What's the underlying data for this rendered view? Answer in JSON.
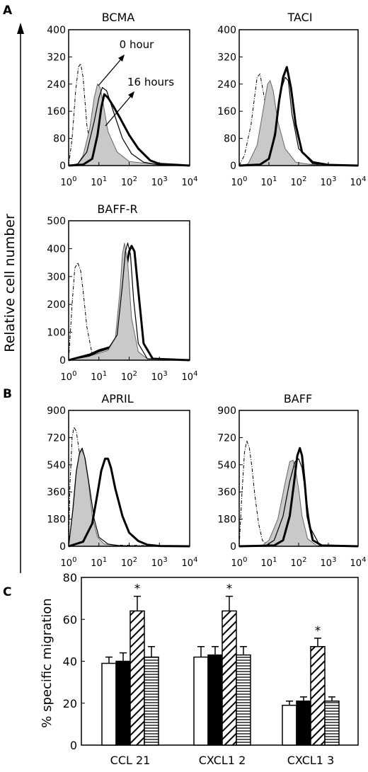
{
  "panel_labels": {
    "A": "A",
    "B": "B",
    "C": "C"
  },
  "shared_ylabel": "Relative cell number",
  "chart_data": [
    {
      "id": "bcma",
      "type": "line",
      "title": "BCMA",
      "x_scale": "log",
      "xlim": [
        1,
        10000
      ],
      "ylim": [
        0,
        400
      ],
      "x_ticks": [
        "10^0",
        "10^1",
        "10^2",
        "10^3",
        "10^4"
      ],
      "y_ticks": [
        0,
        80,
        160,
        240,
        320,
        400
      ],
      "annotations": [
        "0 hour",
        "16 hours"
      ],
      "series": [
        {
          "style": "dashdot",
          "x": [
            1,
            1.3,
            1.7,
            2.1,
            2.5,
            3,
            4,
            6,
            10,
            30,
            10000
          ],
          "y": [
            0,
            80,
            220,
            290,
            300,
            260,
            120,
            30,
            5,
            0,
            0
          ]
        },
        {
          "style": "filled",
          "x": [
            1,
            2,
            3,
            5,
            7,
            9,
            11,
            14,
            20,
            40,
            100,
            1000,
            10000
          ],
          "y": [
            0,
            5,
            30,
            110,
            200,
            240,
            230,
            180,
            100,
            40,
            12,
            2,
            0
          ]
        },
        {
          "style": "thick",
          "x": [
            1,
            3,
            6,
            9,
            12,
            15,
            20,
            30,
            50,
            100,
            200,
            500,
            1000,
            10000
          ],
          "y": [
            0,
            3,
            20,
            90,
            170,
            210,
            200,
            175,
            140,
            90,
            50,
            15,
            5,
            0
          ]
        },
        {
          "style": "thin",
          "x": [
            1,
            2,
            4,
            7,
            10,
            13,
            18,
            30,
            60,
            120,
            300,
            1000,
            10000
          ],
          "y": [
            0,
            5,
            40,
            130,
            200,
            230,
            220,
            160,
            80,
            35,
            10,
            2,
            0
          ]
        }
      ]
    },
    {
      "id": "taci",
      "type": "line",
      "title": "TACI",
      "x_scale": "log",
      "xlim": [
        1,
        10000
      ],
      "ylim": [
        0,
        400
      ],
      "x_ticks": [
        "10^0",
        "10^1",
        "10^2",
        "10^3",
        "10^4"
      ],
      "y_ticks": [
        0,
        80,
        160,
        240,
        320,
        400
      ],
      "series": [
        {
          "style": "dashdot",
          "x": [
            1,
            1.5,
            2.5,
            4,
            5,
            7,
            10,
            20,
            60,
            10000
          ],
          "y": [
            0,
            30,
            120,
            260,
            270,
            200,
            100,
            30,
            5,
            0
          ]
        },
        {
          "style": "filled",
          "x": [
            1,
            2,
            4,
            6,
            9,
            11,
            14,
            20,
            35,
            80,
            300,
            10000
          ],
          "y": [
            0,
            5,
            60,
            150,
            240,
            250,
            220,
            130,
            50,
            10,
            2,
            0
          ]
        },
        {
          "style": "thick",
          "x": [
            1,
            5,
            10,
            16,
            22,
            30,
            40,
            55,
            80,
            130,
            300,
            1000,
            10000
          ],
          "y": [
            0,
            3,
            20,
            90,
            190,
            260,
            290,
            230,
            120,
            40,
            10,
            2,
            0
          ]
        },
        {
          "style": "thin",
          "x": [
            1,
            5,
            10,
            18,
            25,
            35,
            45,
            60,
            100,
            300,
            10000
          ],
          "y": [
            0,
            3,
            20,
            120,
            220,
            260,
            250,
            150,
            50,
            5,
            0
          ]
        }
      ]
    },
    {
      "id": "baffr",
      "type": "line",
      "title": "BAFF-R",
      "x_scale": "log",
      "xlim": [
        1,
        10000
      ],
      "ylim": [
        0,
        500
      ],
      "x_ticks": [
        "10^0",
        "10^1",
        "10^2",
        "10^3",
        "10^4"
      ],
      "y_ticks": [
        0,
        100,
        200,
        300,
        400,
        500
      ],
      "series": [
        {
          "style": "dashdot",
          "x": [
            1,
            1.3,
            1.6,
            2,
            2.5,
            3,
            4,
            6,
            10,
            10000
          ],
          "y": [
            0,
            200,
            330,
            350,
            320,
            250,
            120,
            20,
            3,
            0
          ]
        },
        {
          "style": "thick",
          "x": [
            1,
            5,
            10,
            30,
            60,
            80,
            100,
            120,
            150,
            200,
            300,
            600,
            10000
          ],
          "y": [
            0,
            20,
            35,
            50,
            100,
            330,
            390,
            410,
            390,
            250,
            60,
            5,
            0
          ]
        },
        {
          "style": "filled",
          "x": [
            1,
            5,
            10,
            20,
            35,
            50,
            60,
            70,
            90,
            120,
            200,
            400,
            10000
          ],
          "y": [
            0,
            15,
            25,
            35,
            80,
            250,
            380,
            420,
            350,
            150,
            30,
            5,
            0
          ]
        },
        {
          "style": "thin",
          "x": [
            1,
            5,
            10,
            20,
            40,
            60,
            75,
            90,
            110,
            140,
            200,
            400,
            10000
          ],
          "y": [
            0,
            15,
            30,
            40,
            90,
            270,
            390,
            420,
            380,
            220,
            60,
            5,
            0
          ]
        }
      ]
    },
    {
      "id": "april",
      "type": "line",
      "title": "APRIL",
      "x_scale": "log",
      "xlim": [
        1,
        10000
      ],
      "ylim": [
        0,
        900
      ],
      "x_ticks": [
        "10^0",
        "10^1",
        "10^2",
        "10^3",
        "10^4"
      ],
      "y_ticks": [
        0,
        180,
        360,
        540,
        720,
        900
      ],
      "series": [
        {
          "style": "dashdot",
          "x": [
            1,
            1.1,
            1.3,
            1.5,
            1.8,
            2.2,
            3,
            4,
            6,
            10,
            10000
          ],
          "y": [
            0,
            400,
            720,
            790,
            760,
            640,
            420,
            250,
            80,
            10,
            0
          ]
        },
        {
          "style": "filled",
          "x": [
            1,
            1.3,
            1.7,
            2.2,
            2.7,
            3.3,
            4.5,
            6,
            9,
            15,
            40,
            10000
          ],
          "y": [
            0,
            200,
            460,
            600,
            640,
            600,
            430,
            200,
            60,
            15,
            3,
            0
          ]
        },
        {
          "style": "thin",
          "x": [
            1,
            1.4,
            1.8,
            2.3,
            2.8,
            3.5,
            5,
            7,
            10,
            20,
            50,
            10000
          ],
          "y": [
            0,
            250,
            500,
            620,
            650,
            580,
            380,
            180,
            60,
            15,
            3,
            0
          ]
        },
        {
          "style": "thick",
          "x": [
            1,
            3,
            6,
            9,
            12,
            16,
            20,
            25,
            35,
            60,
            100,
            200,
            400,
            1000,
            10000
          ],
          "y": [
            0,
            30,
            150,
            350,
            500,
            580,
            580,
            520,
            380,
            200,
            90,
            35,
            10,
            2,
            0
          ]
        }
      ]
    },
    {
      "id": "baff",
      "type": "line",
      "title": "BAFF",
      "x_scale": "log",
      "xlim": [
        1,
        10000
      ],
      "ylim": [
        0,
        900
      ],
      "x_ticks": [
        "10^0",
        "10^1",
        "10^2",
        "10^3",
        "10^4"
      ],
      "y_ticks": [
        0,
        180,
        360,
        540,
        720,
        900
      ],
      "series": [
        {
          "style": "dashdot",
          "x": [
            1,
            1.2,
            1.5,
            1.8,
            2.2,
            2.7,
            3.3,
            4.5,
            6,
            9,
            10000
          ],
          "y": [
            0,
            300,
            620,
            700,
            650,
            520,
            350,
            150,
            40,
            5,
            0
          ]
        },
        {
          "style": "filled",
          "x": [
            1,
            6,
            10,
            20,
            35,
            50,
            65,
            80,
            100,
            130,
            200,
            400,
            10000
          ],
          "y": [
            0,
            5,
            40,
            180,
            420,
            560,
            570,
            500,
            380,
            200,
            50,
            5,
            0
          ]
        },
        {
          "style": "thin",
          "x": [
            1,
            8,
            15,
            30,
            50,
            75,
            100,
            130,
            170,
            250,
            500,
            10000
          ],
          "y": [
            0,
            5,
            40,
            200,
            430,
            560,
            580,
            520,
            350,
            120,
            10,
            0
          ]
        },
        {
          "style": "thick",
          "x": [
            1,
            15,
            30,
            50,
            70,
            90,
            110,
            130,
            160,
            200,
            300,
            600,
            10000
          ],
          "y": [
            0,
            5,
            40,
            200,
            420,
            600,
            650,
            600,
            420,
            200,
            40,
            5,
            0
          ]
        }
      ]
    },
    {
      "id": "migration",
      "type": "bar",
      "ylabel": "% specific migration",
      "ylim": [
        0,
        80
      ],
      "y_ticks": [
        0,
        20,
        40,
        60,
        80
      ],
      "categories": [
        "CCL 21",
        "CXCL1 2",
        "CXCL1 3"
      ],
      "series": [
        {
          "style": "white",
          "values": [
            39,
            42,
            19
          ],
          "errors": [
            3,
            5,
            2
          ]
        },
        {
          "style": "black",
          "values": [
            40,
            43,
            21
          ],
          "errors": [
            4,
            4,
            2
          ]
        },
        {
          "style": "diagonal",
          "values": [
            64,
            64,
            47
          ],
          "errors": [
            7,
            7,
            4
          ]
        },
        {
          "style": "horizontal",
          "values": [
            42,
            43,
            21
          ],
          "errors": [
            5,
            4,
            2
          ]
        }
      ],
      "significance": [
        {
          "category": "CCL 21",
          "series": 2,
          "mark": "*"
        },
        {
          "category": "CXCL1 2",
          "series": 2,
          "mark": "*"
        },
        {
          "category": "CXCL1 3",
          "series": 2,
          "mark": "*"
        }
      ]
    }
  ]
}
